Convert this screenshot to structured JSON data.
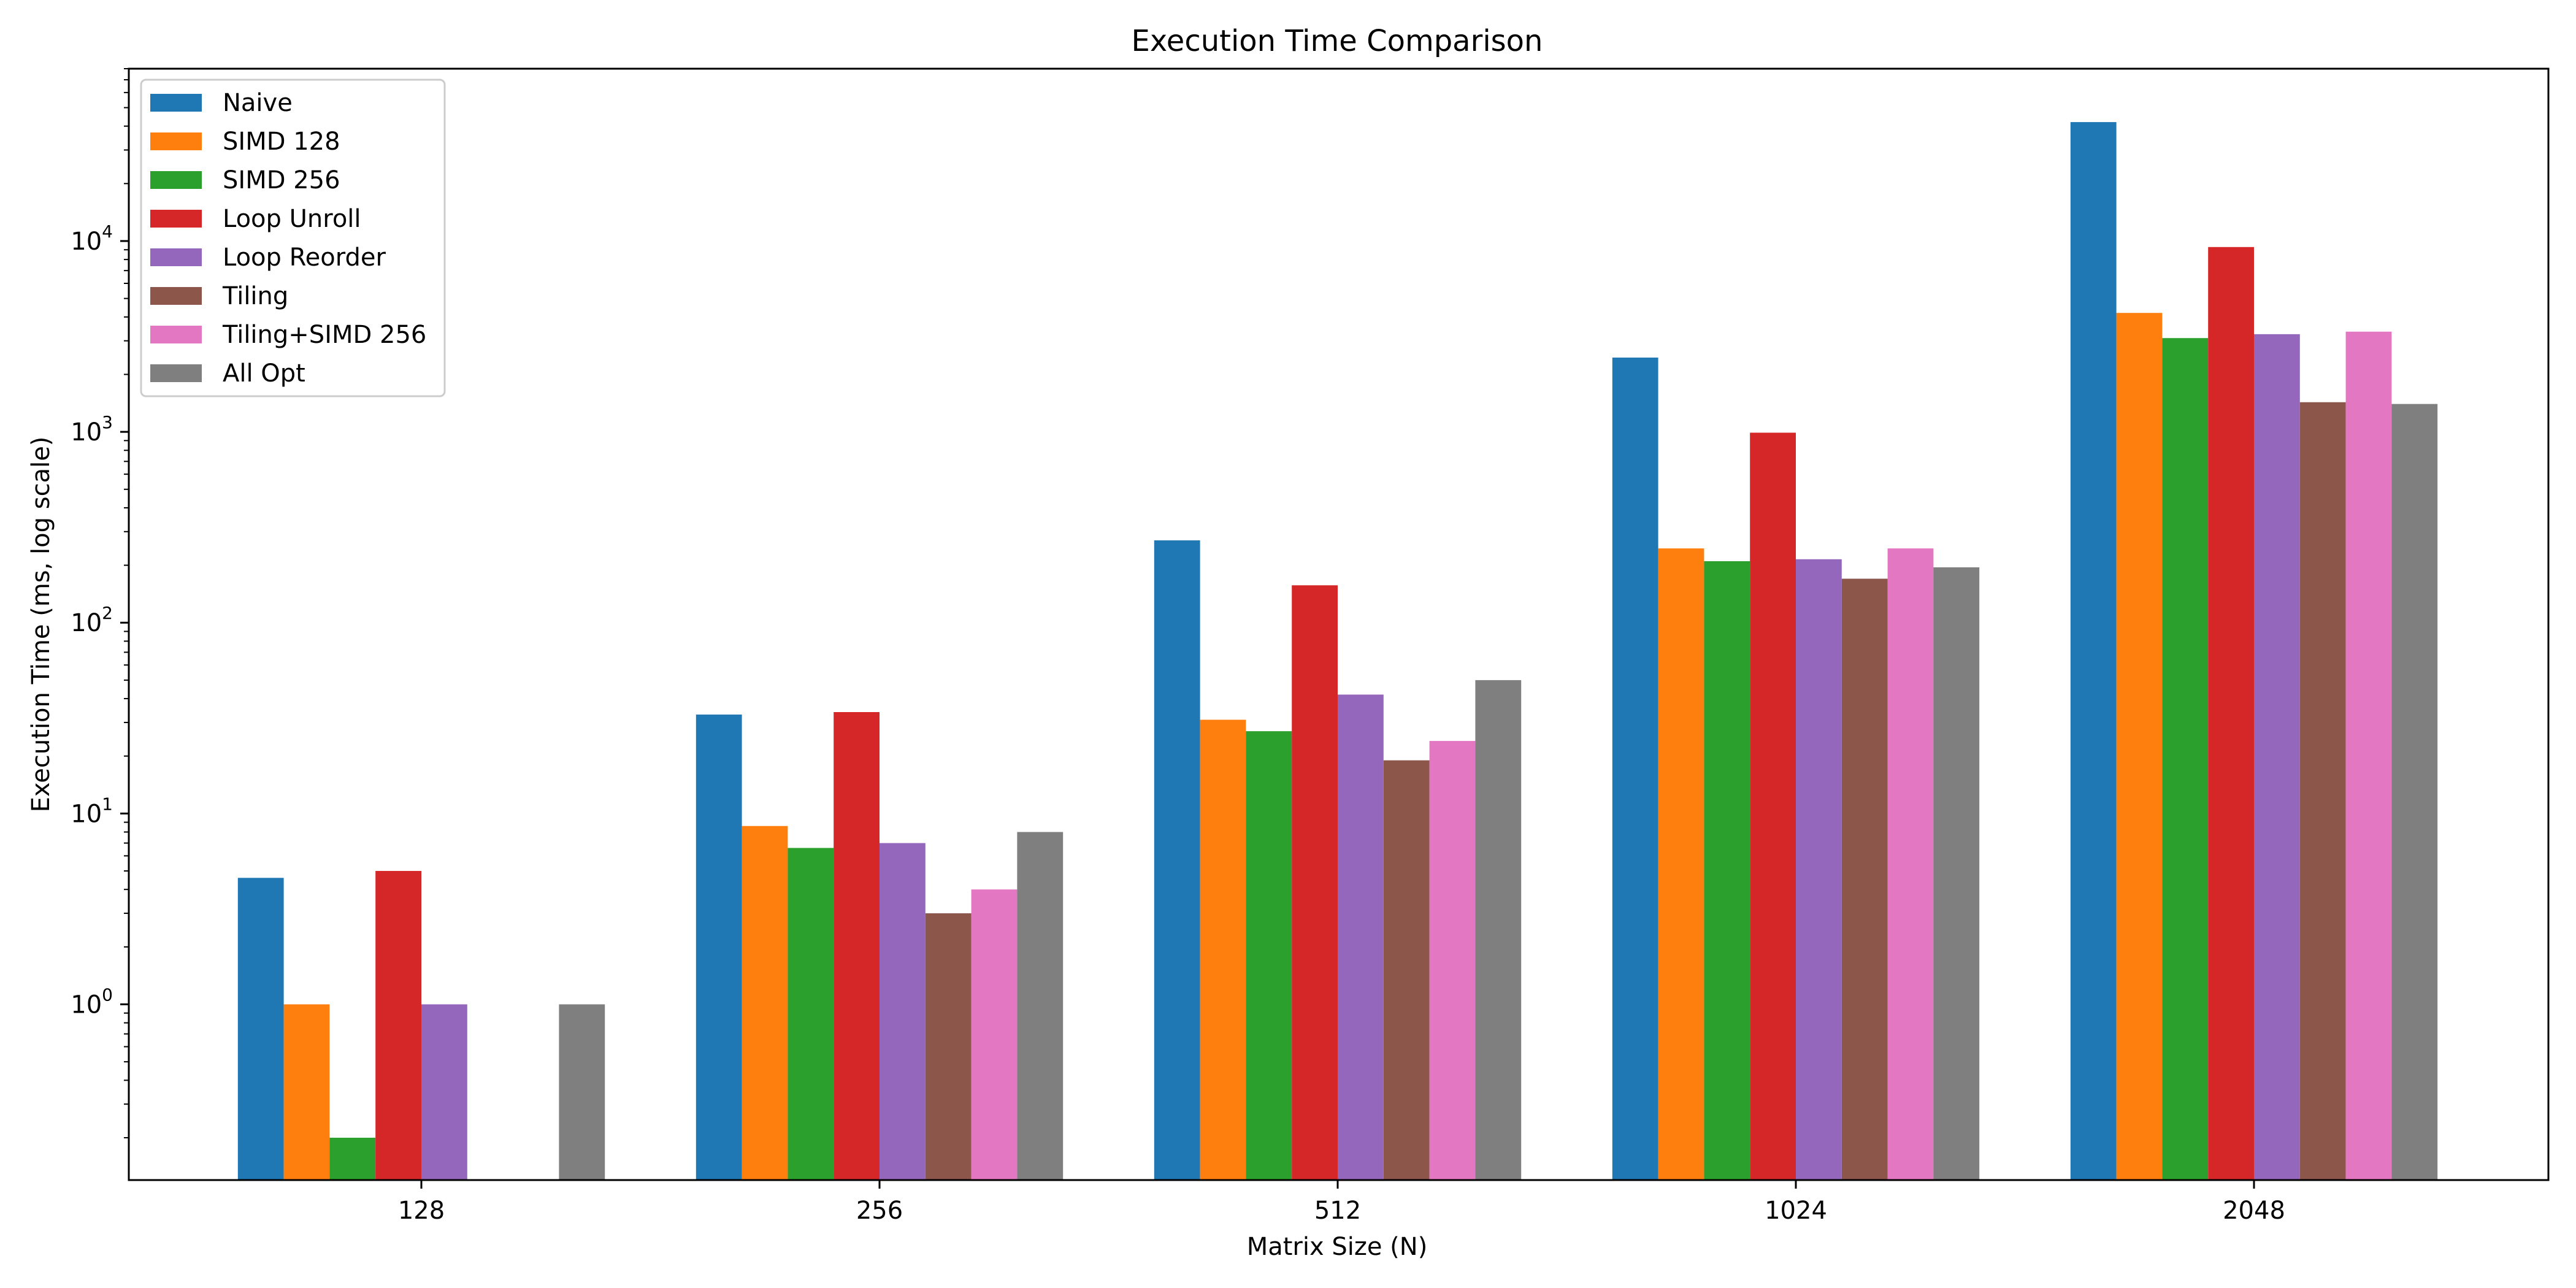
{
  "chart_data": {
    "type": "bar",
    "title": "Execution Time Comparison",
    "xlabel": "Matrix Size (N)",
    "ylabel": "Execution Time (ms, log scale)",
    "yscale": "log",
    "ylim": [
      0.12,
      80000
    ],
    "grid": false,
    "legend_position": "top-left",
    "categories": [
      "128",
      "256",
      "512",
      "1024",
      "2048"
    ],
    "y_ticks": [
      {
        "value": 1,
        "base": "10",
        "exp": "0"
      },
      {
        "value": 10,
        "base": "10",
        "exp": "1"
      },
      {
        "value": 100,
        "base": "10",
        "exp": "2"
      },
      {
        "value": 1000,
        "base": "10",
        "exp": "3"
      },
      {
        "value": 10000,
        "base": "10",
        "exp": "4"
      }
    ],
    "series": [
      {
        "name": "Naive",
        "color": "#1f77b4",
        "values": [
          4.6,
          33,
          270,
          2450,
          42000
        ]
      },
      {
        "name": "SIMD 128",
        "color": "#ff7f0e",
        "values": [
          1.0,
          8.6,
          31,
          245,
          4200
        ]
      },
      {
        "name": "SIMD 256",
        "color": "#2ca02c",
        "values": [
          0.2,
          6.6,
          27,
          210,
          3100
        ]
      },
      {
        "name": "Loop Unroll",
        "color": "#d62728",
        "values": [
          5.0,
          34,
          157,
          990,
          9300
        ]
      },
      {
        "name": "Loop Reorder",
        "color": "#9467bd",
        "values": [
          1.0,
          7.0,
          42,
          215,
          3250
        ]
      },
      {
        "name": "Tiling",
        "color": "#8c564b",
        "values": [
          null,
          3.0,
          19,
          170,
          1430
        ]
      },
      {
        "name": "Tiling+SIMD 256",
        "color": "#e377c2",
        "values": [
          null,
          4.0,
          24,
          245,
          3350
        ]
      },
      {
        "name": "All Opt",
        "color": "#7f7f7f",
        "values": [
          1.0,
          8.0,
          50,
          195,
          1400
        ]
      }
    ]
  }
}
